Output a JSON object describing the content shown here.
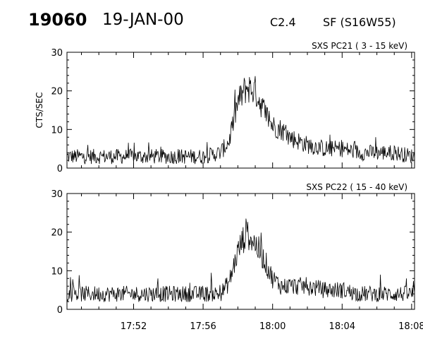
{
  "header": {
    "event_id": "19060",
    "date": "19-JAN-00",
    "flare_class": "C2.4",
    "location": "SF (S16W55)"
  },
  "chart_data": [
    {
      "type": "line",
      "title": "SXS PC21  (  3 - 15 keV)",
      "ylabel": "CTS/SEC",
      "xlabel": "",
      "ylim": [
        0,
        30
      ],
      "yticks": [
        0,
        10,
        20,
        30
      ],
      "xlim": [
        "17:48:10",
        "18:08:10"
      ],
      "xticks": [
        "17:52",
        "17:56",
        "18:00",
        "18:04",
        "18:08"
      ],
      "series": [
        {
          "x": [
            "17:48:10",
            "17:49:00",
            "17:50:00",
            "17:51:00",
            "17:52:00",
            "17:53:00",
            "17:54:00",
            "17:55:00",
            "17:56:00",
            "17:57:00",
            "17:57:30",
            "17:58:00",
            "17:58:30",
            "17:59:00",
            "17:59:30",
            "18:00:00",
            "18:00:30",
            "18:01:00",
            "18:02:00",
            "18:03:00",
            "18:04:00",
            "18:05:00",
            "18:06:00",
            "18:07:00",
            "18:08:10"
          ],
          "y": [
            3,
            3,
            3,
            3,
            3,
            3,
            3,
            3,
            3,
            4,
            7,
            17,
            21,
            20,
            15,
            11,
            10,
            8,
            6,
            5,
            5,
            4,
            4,
            4,
            3
          ]
        }
      ]
    },
    {
      "type": "line",
      "title": "SXS PC22  ( 15 - 40 keV)",
      "ylabel": "",
      "xlabel": "",
      "ylim": [
        0,
        30
      ],
      "yticks": [
        0,
        10,
        20,
        30
      ],
      "xlim": [
        "17:48:10",
        "18:08:10"
      ],
      "xticks": [
        "17:52",
        "17:56",
        "18:00",
        "18:04",
        "18:08"
      ],
      "series": [
        {
          "x": [
            "17:48:10",
            "17:49:00",
            "17:50:00",
            "17:51:00",
            "17:52:00",
            "17:53:00",
            "17:54:00",
            "17:55:00",
            "17:56:00",
            "17:57:00",
            "17:57:30",
            "17:58:00",
            "17:58:30",
            "17:59:00",
            "17:59:30",
            "18:00:00",
            "18:00:30",
            "18:01:00",
            "18:02:00",
            "18:03:00",
            "18:04:00",
            "18:05:00",
            "18:06:00",
            "18:07:00",
            "18:08:10"
          ],
          "y": [
            4,
            4,
            4,
            4,
            4,
            4,
            4,
            4,
            4,
            4,
            7,
            15,
            20,
            17,
            13,
            8,
            6,
            6,
            6,
            5,
            5,
            4,
            4,
            4,
            4
          ]
        }
      ]
    }
  ]
}
